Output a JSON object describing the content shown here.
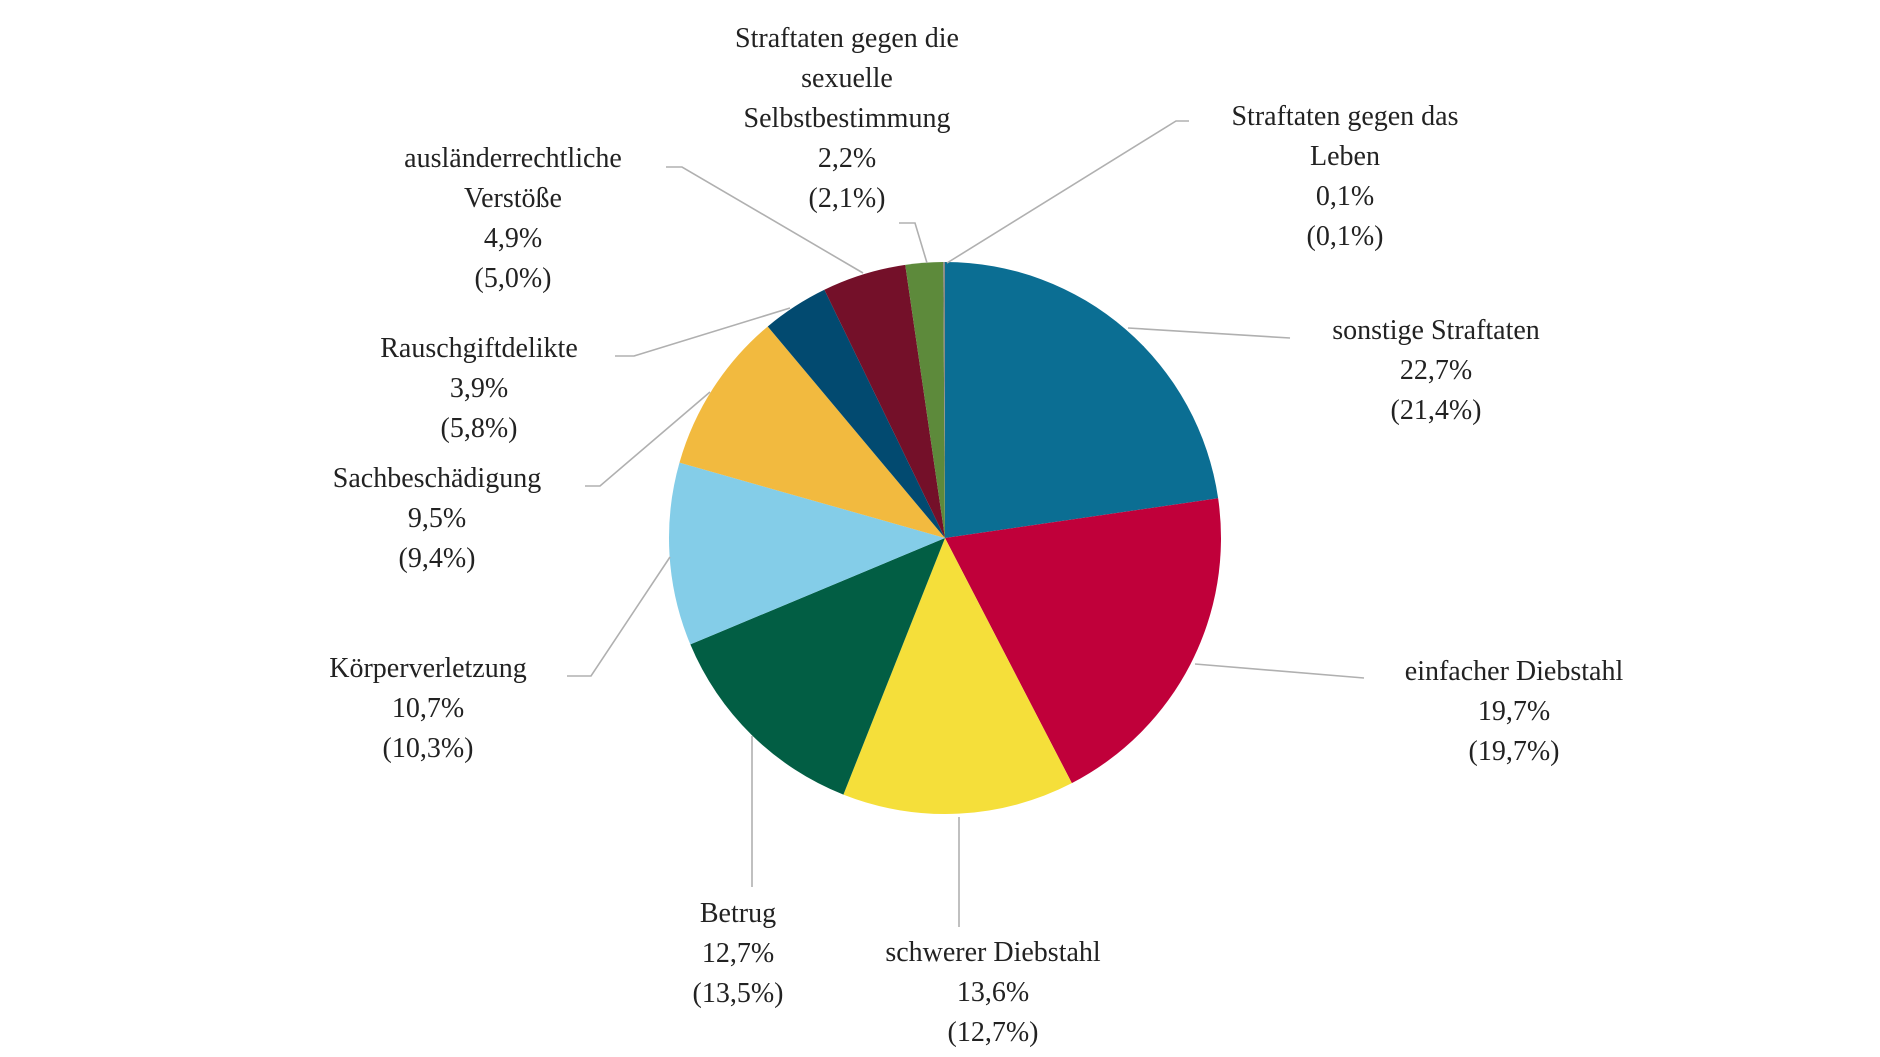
{
  "chart_data": {
    "type": "pie",
    "categories": [
      "sonstige Straftaten",
      "einfacher Diebstahl",
      "schwerer Diebstahl",
      "Betrug",
      "Körperverletzung",
      "Sachbeschädigung",
      "Rauschgiftdelikte",
      "ausländerrechtliche\nVerstöße",
      "Straftaten gegen die\nsexuelle\nSelbstbestimmung",
      "Straftaten gegen das\nLeben"
    ],
    "values": [
      22.7,
      19.7,
      13.6,
      12.7,
      10.7,
      9.5,
      3.9,
      4.9,
      2.2,
      0.1
    ],
    "value_labels": [
      "22,7%",
      "19,7%",
      "13,6%",
      "12,7%",
      "10,7%",
      "9,5%",
      "3,9%",
      "4,9%",
      "2,2%",
      "0,1%"
    ],
    "previous_values": [
      21.4,
      19.7,
      12.7,
      13.5,
      10.3,
      9.4,
      5.8,
      5.0,
      2.1,
      0.1
    ],
    "previous_value_labels": [
      "(21,4%)",
      "(19,7%)",
      "(12,7%)",
      "(13,5%)",
      "(10,3%)",
      "(9,4%)",
      "(5,8%)",
      "(5,0%)",
      "(2,1%)",
      "(0,1%)"
    ],
    "colors": [
      "#0b6e93",
      "#c0003a",
      "#f5df3a",
      "#025e44",
      "#84cde8",
      "#f2ba3f",
      "#024a70",
      "#741029",
      "#5d8a3b",
      "#8a8a8a"
    ]
  }
}
